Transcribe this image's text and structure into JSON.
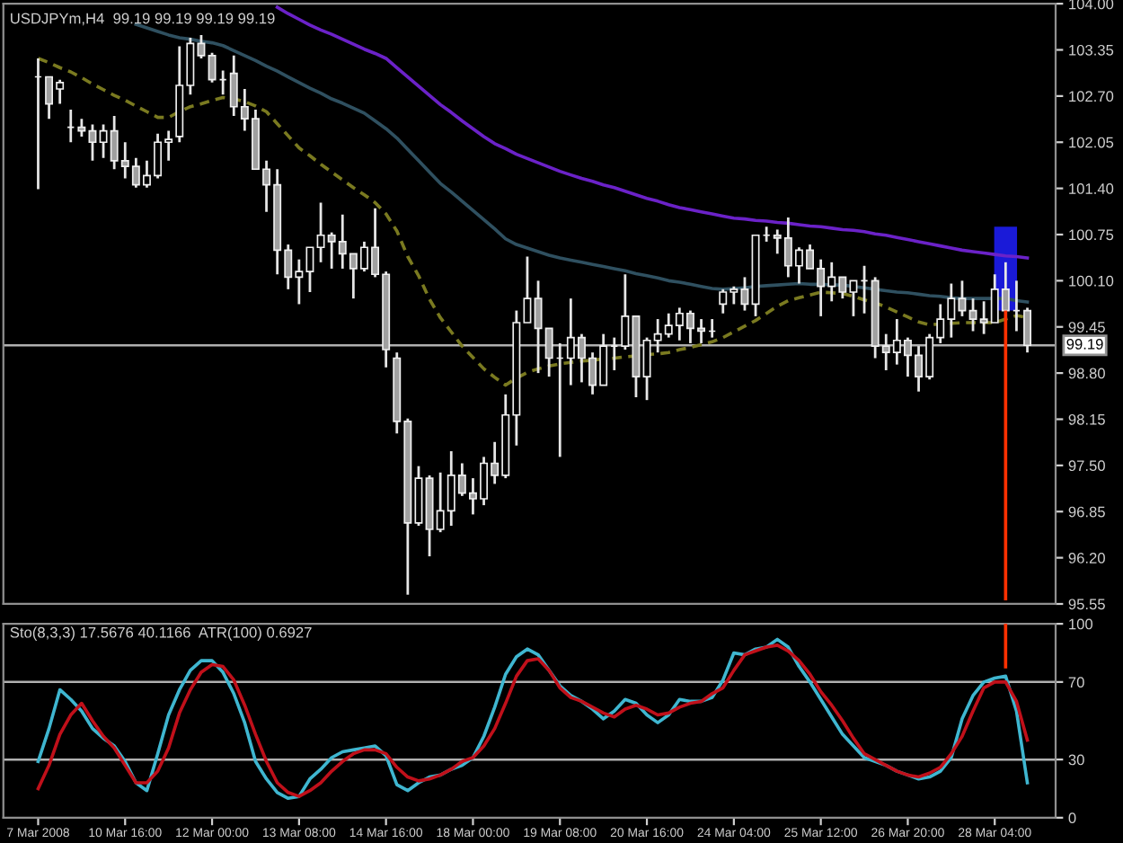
{
  "chart_data": [
    {
      "type": "candlestick",
      "title": "USDJPYm,H4  99.19 99.19 99.19 99.19",
      "tick_labels": "y",
      "grid": false,
      "legend": false,
      "ylim": [
        95.55,
        104.0
      ],
      "yticks": [
        {
          "value": 95.55,
          "label": "95.55"
        },
        {
          "value": 96.2,
          "label": "96.20"
        },
        {
          "value": 96.85,
          "label": "96.85"
        },
        {
          "value": 97.5,
          "label": "97.50"
        },
        {
          "value": 98.15,
          "label": "98.15"
        },
        {
          "value": 98.8,
          "label": "98.80"
        },
        {
          "value": 99.45,
          "label": "99.45"
        },
        {
          "value": 100.1,
          "label": "100.10"
        },
        {
          "value": 100.75,
          "label": "100.75"
        },
        {
          "value": 101.4,
          "label": "101.40"
        },
        {
          "value": 102.05,
          "label": "102.05"
        },
        {
          "value": 102.7,
          "label": "102.70"
        },
        {
          "value": 103.35,
          "label": "103.35"
        },
        {
          "value": 104.0,
          "label": "104.00"
        }
      ],
      "categories": [
        null,
        null,
        null,
        null,
        null,
        null,
        null,
        null,
        null,
        null,
        null,
        null,
        null,
        null,
        null,
        null,
        null,
        null,
        null,
        null,
        null,
        null,
        null,
        null,
        null,
        null,
        null,
        null,
        null,
        null,
        null,
        null,
        null,
        null,
        null,
        null,
        null,
        null,
        null,
        null,
        null,
        null,
        null,
        null,
        null,
        null,
        null,
        null,
        null,
        null,
        null,
        null,
        null,
        null,
        null,
        null,
        null,
        null,
        null,
        null,
        null,
        null,
        null,
        null,
        null,
        null,
        null,
        null,
        null,
        null,
        null,
        null,
        null,
        null,
        null,
        null,
        null,
        null,
        null,
        null,
        null,
        null,
        null,
        null,
        null,
        null,
        null,
        null,
        null,
        null,
        null,
        null
      ],
      "ohlc": [
        [
          102.97,
          103.23,
          101.39,
          102.97
        ],
        [
          102.97,
          102.97,
          102.38,
          102.59
        ],
        [
          102.8,
          102.93,
          102.59,
          102.89
        ],
        [
          102.26,
          102.51,
          102.05,
          102.26
        ],
        [
          102.26,
          102.38,
          102.13,
          102.21
        ],
        [
          102.21,
          102.3,
          101.79,
          102.05
        ],
        [
          102.05,
          102.3,
          101.83,
          102.21
        ],
        [
          102.21,
          102.42,
          101.67,
          101.79
        ],
        [
          101.79,
          102.05,
          101.54,
          101.71
        ],
        [
          101.71,
          101.83,
          101.41,
          101.45
        ],
        [
          101.45,
          101.79,
          101.41,
          101.58
        ],
        [
          101.58,
          102.17,
          101.54,
          102.05
        ],
        [
          102.05,
          102.21,
          101.79,
          102.09
        ],
        [
          102.13,
          103.4,
          102.05,
          102.85
        ],
        [
          102.85,
          103.52,
          102.72,
          103.44
        ],
        [
          103.44,
          103.56,
          103.23,
          103.27
        ],
        [
          103.27,
          103.31,
          102.89,
          102.93
        ],
        [
          102.93,
          103.06,
          102.72,
          102.93
        ],
        [
          103.02,
          103.27,
          102.42,
          102.55
        ],
        [
          102.55,
          102.8,
          102.21,
          102.38
        ],
        [
          102.38,
          102.51,
          101.67,
          101.67
        ],
        [
          101.67,
          101.79,
          101.07,
          101.45
        ],
        [
          101.45,
          101.67,
          100.19,
          100.53
        ],
        [
          100.53,
          100.61,
          99.98,
          100.15
        ],
        [
          100.15,
          100.4,
          99.77,
          100.23
        ],
        [
          100.23,
          100.57,
          99.94,
          100.57
        ],
        [
          100.57,
          101.2,
          100.36,
          100.74
        ],
        [
          100.74,
          100.78,
          100.27,
          100.65
        ],
        [
          100.65,
          101.03,
          100.27,
          100.48
        ],
        [
          100.48,
          100.48,
          99.85,
          100.27
        ],
        [
          100.27,
          100.65,
          100.23,
          100.57
        ],
        [
          100.57,
          101.12,
          100.15,
          100.19
        ],
        [
          100.19,
          100.23,
          98.88,
          99.13
        ],
        [
          99.01,
          99.09,
          97.95,
          98.12
        ],
        [
          98.12,
          98.16,
          95.68,
          96.69
        ],
        [
          96.69,
          97.49,
          96.65,
          97.32
        ],
        [
          97.32,
          97.36,
          96.22,
          96.6
        ],
        [
          96.6,
          97.4,
          96.56,
          96.86
        ],
        [
          96.86,
          97.7,
          96.65,
          97.36
        ],
        [
          97.36,
          97.53,
          97.07,
          97.11
        ],
        [
          97.11,
          97.32,
          96.81,
          97.03
        ],
        [
          97.03,
          97.62,
          96.94,
          97.53
        ],
        [
          97.53,
          97.83,
          97.24,
          97.36
        ],
        [
          97.36,
          98.5,
          97.32,
          98.21
        ],
        [
          98.21,
          99.68,
          97.78,
          99.51
        ],
        [
          99.51,
          100.44,
          99.51,
          99.85
        ],
        [
          99.85,
          100.1,
          98.8,
          99.43
        ],
        [
          99.43,
          99.43,
          98.75,
          99.01
        ],
        [
          99.01,
          99.22,
          97.62,
          99.01
        ],
        [
          99.01,
          99.85,
          98.63,
          99.3
        ],
        [
          99.3,
          99.35,
          98.67,
          99.01
        ],
        [
          99.01,
          99.09,
          98.5,
          98.63
        ],
        [
          98.63,
          99.35,
          98.63,
          99.18
        ],
        [
          99.18,
          99.3,
          98.84,
          99.18
        ],
        [
          99.18,
          100.19,
          99.13,
          99.6
        ],
        [
          99.6,
          99.6,
          98.46,
          98.75
        ],
        [
          98.75,
          99.3,
          98.42,
          99.26
        ],
        [
          99.26,
          99.56,
          99.09,
          99.35
        ],
        [
          99.35,
          99.64,
          99.3,
          99.47
        ],
        [
          99.47,
          99.72,
          99.26,
          99.64
        ],
        [
          99.64,
          99.68,
          99.22,
          99.43
        ],
        [
          99.43,
          99.56,
          99.22,
          99.39
        ],
        [
          99.39,
          99.56,
          99.3,
          99.39
        ],
        [
          99.77,
          99.98,
          99.64,
          99.94
        ],
        [
          99.94,
          100.02,
          99.77,
          99.98
        ],
        [
          99.98,
          100.15,
          99.68,
          99.77
        ],
        [
          99.77,
          100.74,
          99.6,
          100.74
        ],
        [
          100.74,
          100.86,
          100.65,
          100.74
        ],
        [
          100.74,
          100.82,
          100.48,
          100.7
        ],
        [
          100.7,
          100.99,
          100.15,
          100.31
        ],
        [
          100.31,
          100.57,
          100.06,
          100.53
        ],
        [
          100.53,
          100.61,
          100.27,
          100.27
        ],
        [
          100.27,
          100.4,
          99.6,
          100.02
        ],
        [
          100.02,
          100.36,
          99.81,
          100.15
        ],
        [
          100.15,
          100.15,
          99.85,
          99.94
        ],
        [
          99.94,
          100.1,
          99.6,
          100.1
        ],
        [
          100.1,
          100.31,
          99.64,
          100.1
        ],
        [
          100.1,
          100.15,
          99.01,
          99.18
        ],
        [
          99.18,
          99.35,
          98.84,
          99.09
        ],
        [
          99.09,
          99.56,
          98.92,
          99.26
        ],
        [
          99.26,
          99.3,
          98.75,
          99.05
        ],
        [
          99.05,
          99.18,
          98.54,
          98.75
        ],
        [
          98.75,
          99.35,
          98.71,
          99.3
        ],
        [
          99.3,
          99.77,
          99.22,
          99.56
        ],
        [
          99.56,
          100.06,
          99.3,
          99.85
        ],
        [
          99.85,
          100.1,
          99.6,
          99.68
        ],
        [
          99.68,
          99.85,
          99.39,
          99.56
        ],
        [
          99.56,
          99.81,
          99.35,
          99.51
        ],
        [
          99.51,
          100.19,
          99.51,
          99.98
        ],
        [
          99.98,
          100.36,
          99.68,
          99.68
        ],
        [
          99.68,
          100.1,
          99.39,
          99.68
        ],
        [
          99.68,
          99.72,
          99.09,
          99.19
        ]
      ],
      "series": [
        {
          "type": "line",
          "color": "#6b22c8",
          "line_style": "solid",
          "values": [
            null,
            null,
            null,
            null,
            null,
            null,
            null,
            null,
            null,
            null,
            null,
            null,
            null,
            null,
            null,
            null,
            null,
            null,
            null,
            null,
            null,
            null,
            103.95,
            103.86,
            103.78,
            103.7,
            103.63,
            103.57,
            103.5,
            103.43,
            103.36,
            103.3,
            103.23,
            103.1,
            102.97,
            102.84,
            102.71,
            102.58,
            102.47,
            102.35,
            102.24,
            102.13,
            102.03,
            101.96,
            101.88,
            101.82,
            101.76,
            101.7,
            101.64,
            101.59,
            101.54,
            101.5,
            101.45,
            101.41,
            101.36,
            101.31,
            101.26,
            101.22,
            101.17,
            101.13,
            101.1,
            101.07,
            101.04,
            101.01,
            100.98,
            100.97,
            100.95,
            100.94,
            100.92,
            100.91,
            100.89,
            100.87,
            100.86,
            100.84,
            100.82,
            100.81,
            100.79,
            100.76,
            100.74,
            100.71,
            100.68,
            100.65,
            100.62,
            100.59,
            100.56,
            100.53,
            100.51,
            100.49,
            100.47,
            100.45,
            100.44,
            100.42
          ]
        },
        {
          "type": "line",
          "color": "#2f5060",
          "line_style": "solid",
          "values": [
            null,
            null,
            null,
            null,
            null,
            null,
            null,
            null,
            null,
            103.71,
            103.66,
            103.61,
            103.56,
            103.52,
            103.5,
            103.47,
            103.45,
            103.41,
            103.34,
            103.27,
            103.2,
            103.12,
            103.05,
            102.97,
            102.89,
            102.81,
            102.74,
            102.66,
            102.6,
            102.53,
            102.46,
            102.35,
            102.24,
            102.11,
            101.95,
            101.79,
            101.63,
            101.47,
            101.35,
            101.22,
            101.09,
            100.96,
            100.83,
            100.69,
            100.61,
            100.56,
            100.51,
            100.46,
            100.42,
            100.39,
            100.36,
            100.33,
            100.3,
            100.27,
            100.24,
            100.2,
            100.17,
            100.14,
            100.1,
            100.08,
            100.05,
            100.02,
            99.99,
            99.98,
            99.99,
            100.0,
            100.02,
            100.03,
            100.04,
            100.05,
            100.06,
            100.05,
            100.05,
            100.04,
            100.04,
            100.02,
            100.0,
            99.98,
            99.96,
            99.94,
            99.93,
            99.91,
            99.89,
            99.88,
            99.86,
            99.85,
            99.85,
            99.85,
            99.85,
            99.85,
            99.82,
            99.8
          ]
        },
        {
          "type": "line",
          "color": "#7a7a20",
          "line_style": "dashed",
          "values": [
            103.23,
            103.17,
            103.1,
            103.04,
            102.96,
            102.87,
            102.79,
            102.71,
            102.64,
            102.56,
            102.48,
            102.4,
            102.4,
            102.48,
            102.55,
            102.59,
            102.64,
            102.68,
            102.66,
            102.62,
            102.56,
            102.48,
            102.31,
            102.14,
            101.97,
            101.86,
            101.74,
            101.63,
            101.52,
            101.41,
            101.31,
            101.2,
            101.04,
            100.8,
            100.44,
            100.17,
            99.84,
            99.58,
            99.38,
            99.18,
            99.02,
            98.86,
            98.74,
            98.63,
            98.73,
            98.81,
            98.86,
            98.9,
            98.93,
            98.95,
            98.97,
            98.98,
            99.0,
            99.01,
            99.03,
            99.04,
            99.06,
            99.07,
            99.09,
            99.13,
            99.16,
            99.2,
            99.24,
            99.3,
            99.38,
            99.46,
            99.54,
            99.64,
            99.74,
            99.82,
            99.86,
            99.9,
            99.94,
            99.93,
            99.92,
            99.88,
            99.83,
            99.79,
            99.73,
            99.66,
            99.59,
            99.52,
            99.48,
            99.49,
            99.5,
            99.51,
            99.51,
            99.51,
            99.51,
            99.56,
            99.61,
            99.58
          ]
        },
        {
          "type": "bar",
          "color": "#1a1ad8",
          "values": [
            null,
            null,
            null,
            null,
            null,
            null,
            null,
            null,
            null,
            null,
            null,
            null,
            null,
            null,
            null,
            null,
            null,
            null,
            null,
            null,
            null,
            null,
            null,
            null,
            null,
            null,
            null,
            null,
            null,
            null,
            null,
            null,
            null,
            null,
            null,
            null,
            null,
            null,
            null,
            null,
            null,
            null,
            null,
            null,
            null,
            null,
            null,
            null,
            null,
            null,
            null,
            null,
            null,
            null,
            null,
            null,
            null,
            null,
            null,
            null,
            null,
            null,
            null,
            null,
            null,
            null,
            null,
            null,
            null,
            null,
            null,
            null,
            null,
            null,
            null,
            null,
            null,
            null,
            null,
            null,
            null,
            null,
            null,
            null,
            null,
            null,
            null,
            null,
            null,
            1.18,
            null,
            null
          ],
          "base": [
            null,
            null,
            null,
            null,
            null,
            null,
            null,
            null,
            null,
            null,
            null,
            null,
            null,
            null,
            null,
            null,
            null,
            null,
            null,
            null,
            null,
            null,
            null,
            null,
            null,
            null,
            null,
            null,
            null,
            null,
            null,
            null,
            null,
            null,
            null,
            null,
            null,
            null,
            null,
            null,
            null,
            null,
            null,
            null,
            null,
            null,
            null,
            null,
            null,
            null,
            null,
            null,
            null,
            null,
            null,
            null,
            null,
            null,
            null,
            null,
            null,
            null,
            null,
            null,
            null,
            null,
            null,
            null,
            null,
            null,
            null,
            null,
            null,
            null,
            null,
            null,
            null,
            null,
            null,
            null,
            null,
            null,
            null,
            null,
            null,
            null,
            null,
            null,
            null,
            99.68,
            null,
            null
          ]
        },
        {
          "type": "bar",
          "color": "#ff3000",
          "line_style": "solid",
          "values": [
            null,
            null,
            null,
            null,
            null,
            null,
            null,
            null,
            null,
            null,
            null,
            null,
            null,
            null,
            null,
            null,
            null,
            null,
            null,
            null,
            null,
            null,
            null,
            null,
            null,
            null,
            null,
            null,
            null,
            null,
            null,
            null,
            null,
            null,
            null,
            null,
            null,
            null,
            null,
            null,
            null,
            null,
            null,
            null,
            null,
            null,
            null,
            null,
            null,
            null,
            null,
            null,
            null,
            null,
            null,
            null,
            null,
            null,
            null,
            null,
            null,
            null,
            null,
            null,
            null,
            null,
            null,
            null,
            null,
            null,
            null,
            null,
            null,
            null,
            null,
            null,
            null,
            null,
            null,
            null,
            null,
            null,
            null,
            null,
            null,
            null,
            null,
            null,
            null,
            4.08,
            null,
            null
          ],
          "base": [
            null,
            null,
            null,
            null,
            null,
            null,
            null,
            null,
            null,
            null,
            null,
            null,
            null,
            null,
            null,
            null,
            null,
            null,
            null,
            null,
            null,
            null,
            null,
            null,
            null,
            null,
            null,
            null,
            null,
            null,
            null,
            null,
            null,
            null,
            null,
            null,
            null,
            null,
            null,
            null,
            null,
            null,
            null,
            null,
            null,
            null,
            null,
            null,
            null,
            null,
            null,
            null,
            null,
            null,
            null,
            null,
            null,
            null,
            null,
            null,
            null,
            null,
            null,
            null,
            null,
            null,
            null,
            null,
            null,
            null,
            null,
            null,
            null,
            null,
            null,
            null,
            null,
            null,
            null,
            null,
            null,
            null,
            null,
            null,
            null,
            null,
            null,
            null,
            null,
            95.6,
            null,
            null
          ]
        }
      ],
      "ref_lines": [
        {
          "axis": "y",
          "value": 99.19,
          "label": "99.19",
          "color": "#b0b0b0"
        }
      ]
    },
    {
      "type": "line",
      "title": "Sto(8,3,3) 17.5676 40.1166  ATR(100) 0.6927",
      "grid": false,
      "legend": false,
      "ylim": [
        0,
        100
      ],
      "yticks": [
        0,
        30,
        70,
        100
      ],
      "categories": [
        "7 Mar 2008",
        null,
        null,
        null,
        null,
        null,
        null,
        null,
        "10 Mar 16:00",
        null,
        null,
        null,
        null,
        null,
        null,
        null,
        "12 Mar 00:00",
        null,
        null,
        null,
        null,
        null,
        null,
        null,
        "13 Mar 08:00",
        null,
        null,
        null,
        null,
        null,
        null,
        null,
        "14 Mar 16:00",
        null,
        null,
        null,
        null,
        null,
        null,
        null,
        "18 Mar 00:00",
        null,
        null,
        null,
        null,
        null,
        null,
        null,
        "19 Mar 08:00",
        null,
        null,
        null,
        null,
        null,
        null,
        null,
        "20 Mar 16:00",
        null,
        null,
        null,
        null,
        null,
        null,
        null,
        "24 Mar 04:00",
        null,
        null,
        null,
        null,
        null,
        null,
        null,
        "25 Mar 12:00",
        null,
        null,
        null,
        null,
        null,
        null,
        null,
        "26 Mar 20:00",
        null,
        null,
        null,
        null,
        null,
        null,
        null,
        "28 Mar 04:00",
        null,
        null,
        null
      ],
      "series": [
        {
          "type": "line",
          "color": "#3fb6d0",
          "line_style": "solid",
          "values": [
            29,
            46,
            66,
            61,
            55,
            46,
            41,
            37,
            29,
            18,
            14,
            33,
            53,
            66,
            76,
            81,
            81,
            75,
            64,
            49,
            29,
            20,
            13,
            10,
            11,
            20,
            25,
            31,
            34,
            35,
            36,
            37,
            32,
            17,
            14,
            18,
            21,
            22,
            25,
            27,
            31,
            42,
            57,
            74,
            83,
            87,
            84,
            76,
            68,
            63,
            60,
            56,
            51,
            55,
            61,
            59,
            53,
            49,
            53,
            61,
            60,
            60,
            62,
            71,
            85,
            84,
            87,
            88,
            92,
            88,
            78,
            70,
            61,
            52,
            43,
            37,
            31,
            29,
            27,
            24,
            22,
            20,
            21,
            24,
            31,
            51,
            63,
            70,
            72,
            73,
            55,
            18
          ]
        },
        {
          "type": "line",
          "color": "#c0101a",
          "line_style": "solid",
          "values": [
            15,
            27,
            43,
            53,
            59,
            50,
            42,
            36,
            27,
            18,
            18,
            24,
            36,
            54,
            66,
            75,
            79,
            78,
            71,
            58,
            43,
            29,
            18,
            13,
            11,
            14,
            18,
            24,
            29,
            33,
            35,
            35,
            33,
            26,
            21,
            19,
            20,
            22,
            25,
            29,
            31,
            37,
            46,
            59,
            73,
            81,
            82,
            76,
            67,
            62,
            60,
            57,
            54,
            52,
            56,
            58,
            56,
            53,
            54,
            57,
            59,
            60,
            64,
            67,
            76,
            84,
            86,
            88,
            89,
            86,
            81,
            74,
            65,
            58,
            50,
            41,
            33,
            30,
            27,
            24,
            22,
            21,
            23,
            26,
            33,
            42,
            55,
            67,
            70,
            70,
            60,
            40
          ]
        },
        {
          "type": "bar",
          "color": "#ff3000",
          "line_style": "solid",
          "values": [
            null,
            null,
            null,
            null,
            null,
            null,
            null,
            null,
            null,
            null,
            null,
            null,
            null,
            null,
            null,
            null,
            null,
            null,
            null,
            null,
            null,
            null,
            null,
            null,
            null,
            null,
            null,
            null,
            null,
            null,
            null,
            null,
            null,
            null,
            null,
            null,
            null,
            null,
            null,
            null,
            null,
            null,
            null,
            null,
            null,
            null,
            null,
            null,
            null,
            null,
            null,
            null,
            null,
            null,
            null,
            null,
            null,
            null,
            null,
            null,
            null,
            null,
            null,
            null,
            null,
            null,
            null,
            null,
            null,
            null,
            null,
            null,
            null,
            null,
            null,
            null,
            null,
            null,
            null,
            null,
            null,
            null,
            null,
            null,
            null,
            null,
            null,
            null,
            null,
            23,
            null,
            null
          ],
          "base": [
            null,
            null,
            null,
            null,
            null,
            null,
            null,
            null,
            null,
            null,
            null,
            null,
            null,
            null,
            null,
            null,
            null,
            null,
            null,
            null,
            null,
            null,
            null,
            null,
            null,
            null,
            null,
            null,
            null,
            null,
            null,
            null,
            null,
            null,
            null,
            null,
            null,
            null,
            null,
            null,
            null,
            null,
            null,
            null,
            null,
            null,
            null,
            null,
            null,
            null,
            null,
            null,
            null,
            null,
            null,
            null,
            null,
            null,
            null,
            null,
            null,
            null,
            null,
            null,
            null,
            null,
            null,
            null,
            null,
            null,
            null,
            null,
            null,
            null,
            null,
            null,
            null,
            null,
            null,
            null,
            null,
            null,
            null,
            null,
            null,
            null,
            null,
            null,
            null,
            77,
            null,
            null
          ]
        }
      ],
      "ref_lines": [
        {
          "axis": "y",
          "value": 70,
          "color": "#b0b0b0"
        },
        {
          "axis": "y",
          "value": 30,
          "color": "#b0b0b0"
        }
      ]
    }
  ]
}
